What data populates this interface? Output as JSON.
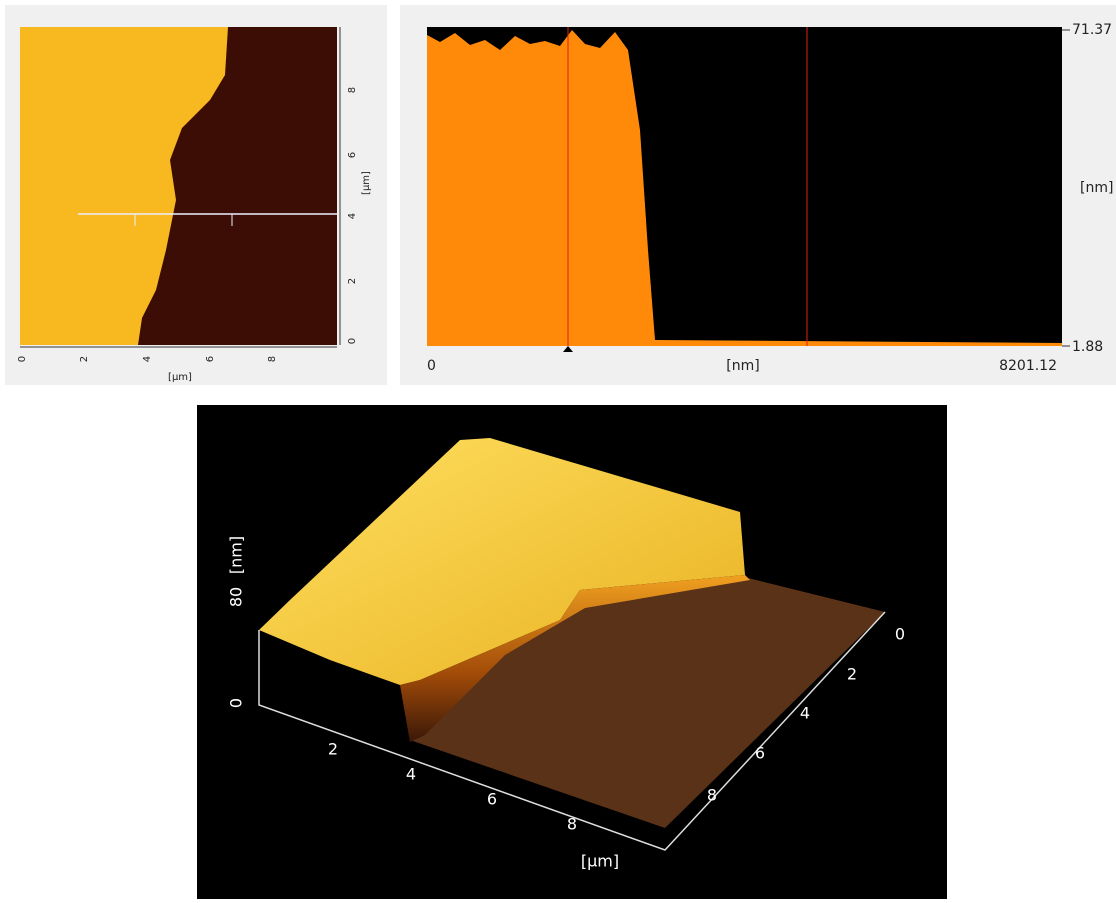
{
  "panels": {
    "height_map": {
      "x_ticks": [
        "0",
        "2",
        "4",
        "6",
        "8"
      ],
      "x_unit": "[µm]",
      "y_ticks": [
        "0",
        "2",
        "4",
        "6",
        "8"
      ],
      "y_unit": "[µm]"
    },
    "profile": {
      "y_max": "71.37",
      "y_min": "1.88",
      "y_unit": "[nm]",
      "x_start": "0",
      "x_unit": "[nm]",
      "x_end": "8201.12"
    },
    "surface_3d": {
      "z_ticks": [
        "0",
        "80"
      ],
      "z_unit": "[nm]",
      "x_ticks": [
        "2",
        "4",
        "6",
        "8"
      ],
      "x_unit": "[µm]",
      "y_ticks": [
        "0",
        "2",
        "4",
        "6",
        "8"
      ]
    }
  }
}
